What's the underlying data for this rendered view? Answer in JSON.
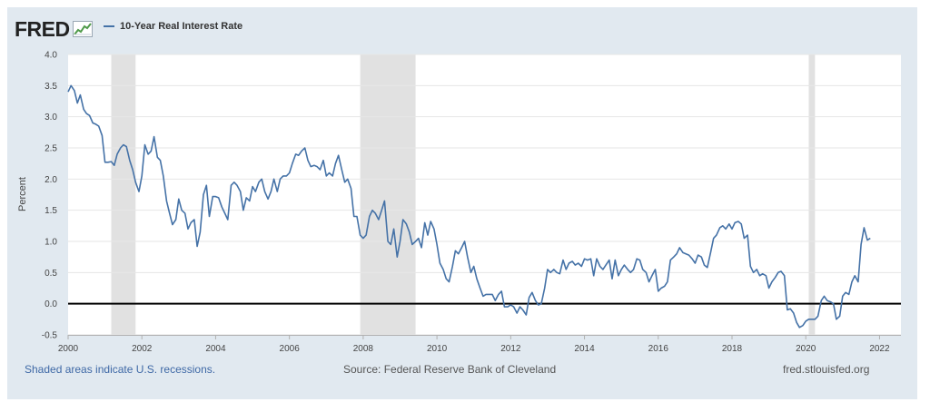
{
  "brand": {
    "name": "FRED"
  },
  "legend": {
    "label": "10-Year Real Interest Rate",
    "color": "#4572a7"
  },
  "footer": {
    "recession_note": "Shaded areas indicate U.S. recessions.",
    "source": "Source: Federal Reserve Bank of Cleveland",
    "site": "fred.stlouisfed.org"
  },
  "chart_data": {
    "type": "line",
    "title": "",
    "xlabel": "",
    "ylabel": "Percent",
    "xlim": [
      2000.0,
      2022.58
    ],
    "ylim": [
      -0.5,
      4.0
    ],
    "yticks": [
      -0.5,
      0.0,
      0.5,
      1.0,
      1.5,
      2.0,
      2.5,
      3.0,
      3.5,
      4.0
    ],
    "xticks": [
      2000,
      2002,
      2004,
      2006,
      2008,
      2010,
      2012,
      2014,
      2016,
      2018,
      2020,
      2022
    ],
    "grid": true,
    "zero_line": true,
    "recessions": [
      [
        2001.17,
        2001.83
      ],
      [
        2007.92,
        2009.42
      ],
      [
        2020.08,
        2020.25
      ]
    ],
    "series": [
      {
        "name": "10-Year Real Interest Rate",
        "points": [
          [
            2000.0,
            3.4
          ],
          [
            2000.08,
            3.5
          ],
          [
            2000.17,
            3.42
          ],
          [
            2000.25,
            3.22
          ],
          [
            2000.33,
            3.35
          ],
          [
            2000.42,
            3.12
          ],
          [
            2000.5,
            3.05
          ],
          [
            2000.58,
            3.02
          ],
          [
            2000.67,
            2.9
          ],
          [
            2000.75,
            2.88
          ],
          [
            2000.83,
            2.85
          ],
          [
            2000.92,
            2.7
          ],
          [
            2001.0,
            2.27
          ],
          [
            2001.08,
            2.27
          ],
          [
            2001.17,
            2.28
          ],
          [
            2001.25,
            2.22
          ],
          [
            2001.33,
            2.4
          ],
          [
            2001.42,
            2.5
          ],
          [
            2001.5,
            2.55
          ],
          [
            2001.58,
            2.52
          ],
          [
            2001.67,
            2.3
          ],
          [
            2001.75,
            2.15
          ],
          [
            2001.83,
            1.95
          ],
          [
            2001.92,
            1.8
          ],
          [
            2002.0,
            2.05
          ],
          [
            2002.08,
            2.55
          ],
          [
            2002.17,
            2.4
          ],
          [
            2002.25,
            2.45
          ],
          [
            2002.33,
            2.68
          ],
          [
            2002.42,
            2.35
          ],
          [
            2002.5,
            2.3
          ],
          [
            2002.58,
            2.05
          ],
          [
            2002.67,
            1.65
          ],
          [
            2002.75,
            1.45
          ],
          [
            2002.83,
            1.27
          ],
          [
            2002.92,
            1.35
          ],
          [
            2003.0,
            1.68
          ],
          [
            2003.08,
            1.5
          ],
          [
            2003.17,
            1.45
          ],
          [
            2003.25,
            1.2
          ],
          [
            2003.33,
            1.3
          ],
          [
            2003.42,
            1.35
          ],
          [
            2003.5,
            0.92
          ],
          [
            2003.58,
            1.15
          ],
          [
            2003.67,
            1.75
          ],
          [
            2003.75,
            1.9
          ],
          [
            2003.83,
            1.4
          ],
          [
            2003.92,
            1.72
          ],
          [
            2004.0,
            1.72
          ],
          [
            2004.08,
            1.7
          ],
          [
            2004.17,
            1.55
          ],
          [
            2004.25,
            1.45
          ],
          [
            2004.33,
            1.35
          ],
          [
            2004.42,
            1.9
          ],
          [
            2004.5,
            1.95
          ],
          [
            2004.58,
            1.9
          ],
          [
            2004.67,
            1.8
          ],
          [
            2004.75,
            1.5
          ],
          [
            2004.83,
            1.7
          ],
          [
            2004.92,
            1.65
          ],
          [
            2005.0,
            1.88
          ],
          [
            2005.08,
            1.8
          ],
          [
            2005.17,
            1.95
          ],
          [
            2005.25,
            2.0
          ],
          [
            2005.33,
            1.8
          ],
          [
            2005.42,
            1.68
          ],
          [
            2005.5,
            1.8
          ],
          [
            2005.58,
            2.0
          ],
          [
            2005.67,
            1.8
          ],
          [
            2005.75,
            2.0
          ],
          [
            2005.83,
            2.05
          ],
          [
            2005.92,
            2.05
          ],
          [
            2006.0,
            2.1
          ],
          [
            2006.08,
            2.25
          ],
          [
            2006.17,
            2.4
          ],
          [
            2006.25,
            2.38
          ],
          [
            2006.33,
            2.45
          ],
          [
            2006.42,
            2.5
          ],
          [
            2006.5,
            2.3
          ],
          [
            2006.58,
            2.2
          ],
          [
            2006.67,
            2.22
          ],
          [
            2006.75,
            2.2
          ],
          [
            2006.83,
            2.15
          ],
          [
            2006.92,
            2.3
          ],
          [
            2007.0,
            2.05
          ],
          [
            2007.08,
            2.1
          ],
          [
            2007.17,
            2.05
          ],
          [
            2007.25,
            2.25
          ],
          [
            2007.33,
            2.38
          ],
          [
            2007.42,
            2.15
          ],
          [
            2007.5,
            1.95
          ],
          [
            2007.58,
            2.0
          ],
          [
            2007.67,
            1.85
          ],
          [
            2007.75,
            1.4
          ],
          [
            2007.83,
            1.4
          ],
          [
            2007.92,
            1.1
          ],
          [
            2008.0,
            1.05
          ],
          [
            2008.08,
            1.1
          ],
          [
            2008.17,
            1.4
          ],
          [
            2008.25,
            1.5
          ],
          [
            2008.33,
            1.45
          ],
          [
            2008.42,
            1.35
          ],
          [
            2008.5,
            1.5
          ],
          [
            2008.58,
            1.65
          ],
          [
            2008.67,
            1.0
          ],
          [
            2008.75,
            0.95
          ],
          [
            2008.83,
            1.2
          ],
          [
            2008.92,
            0.75
          ],
          [
            2009.0,
            1.0
          ],
          [
            2009.08,
            1.35
          ],
          [
            2009.17,
            1.28
          ],
          [
            2009.25,
            1.15
          ],
          [
            2009.33,
            0.95
          ],
          [
            2009.42,
            1.0
          ],
          [
            2009.5,
            1.05
          ],
          [
            2009.58,
            0.9
          ],
          [
            2009.67,
            1.3
          ],
          [
            2009.75,
            1.1
          ],
          [
            2009.83,
            1.32
          ],
          [
            2009.92,
            1.2
          ],
          [
            2010.0,
            0.95
          ],
          [
            2010.08,
            0.65
          ],
          [
            2010.17,
            0.55
          ],
          [
            2010.25,
            0.4
          ],
          [
            2010.33,
            0.35
          ],
          [
            2010.42,
            0.6
          ],
          [
            2010.5,
            0.85
          ],
          [
            2010.58,
            0.8
          ],
          [
            2010.67,
            0.9
          ],
          [
            2010.75,
            1.0
          ],
          [
            2010.83,
            0.75
          ],
          [
            2010.92,
            0.5
          ],
          [
            2011.0,
            0.6
          ],
          [
            2011.08,
            0.4
          ],
          [
            2011.17,
            0.25
          ],
          [
            2011.25,
            0.12
          ],
          [
            2011.33,
            0.15
          ],
          [
            2011.42,
            0.15
          ],
          [
            2011.5,
            0.15
          ],
          [
            2011.58,
            0.05
          ],
          [
            2011.67,
            0.15
          ],
          [
            2011.75,
            0.2
          ],
          [
            2011.83,
            -0.05
          ],
          [
            2011.92,
            -0.05
          ],
          [
            2012.0,
            -0.02
          ],
          [
            2012.08,
            -0.05
          ],
          [
            2012.17,
            -0.15
          ],
          [
            2012.25,
            -0.05
          ],
          [
            2012.33,
            -0.1
          ],
          [
            2012.42,
            -0.18
          ],
          [
            2012.5,
            0.1
          ],
          [
            2012.58,
            0.18
          ],
          [
            2012.67,
            0.05
          ],
          [
            2012.75,
            -0.02
          ],
          [
            2012.83,
            0.0
          ],
          [
            2012.92,
            0.25
          ],
          [
            2013.0,
            0.55
          ],
          [
            2013.08,
            0.5
          ],
          [
            2013.17,
            0.55
          ],
          [
            2013.25,
            0.5
          ],
          [
            2013.33,
            0.48
          ],
          [
            2013.42,
            0.7
          ],
          [
            2013.5,
            0.55
          ],
          [
            2013.58,
            0.65
          ],
          [
            2013.67,
            0.68
          ],
          [
            2013.75,
            0.62
          ],
          [
            2013.83,
            0.65
          ],
          [
            2013.92,
            0.6
          ],
          [
            2014.0,
            0.72
          ],
          [
            2014.08,
            0.7
          ],
          [
            2014.17,
            0.72
          ],
          [
            2014.25,
            0.45
          ],
          [
            2014.33,
            0.72
          ],
          [
            2014.42,
            0.6
          ],
          [
            2014.5,
            0.55
          ],
          [
            2014.58,
            0.62
          ],
          [
            2014.67,
            0.7
          ],
          [
            2014.75,
            0.4
          ],
          [
            2014.83,
            0.7
          ],
          [
            2014.92,
            0.45
          ],
          [
            2015.0,
            0.55
          ],
          [
            2015.08,
            0.62
          ],
          [
            2015.17,
            0.55
          ],
          [
            2015.25,
            0.5
          ],
          [
            2015.33,
            0.55
          ],
          [
            2015.42,
            0.72
          ],
          [
            2015.5,
            0.7
          ],
          [
            2015.58,
            0.55
          ],
          [
            2015.67,
            0.5
          ],
          [
            2015.75,
            0.35
          ],
          [
            2015.83,
            0.45
          ],
          [
            2015.92,
            0.55
          ],
          [
            2016.0,
            0.2
          ],
          [
            2016.08,
            0.25
          ],
          [
            2016.17,
            0.28
          ],
          [
            2016.25,
            0.35
          ],
          [
            2016.33,
            0.7
          ],
          [
            2016.42,
            0.75
          ],
          [
            2016.5,
            0.8
          ],
          [
            2016.58,
            0.9
          ],
          [
            2016.67,
            0.82
          ],
          [
            2016.75,
            0.8
          ],
          [
            2016.83,
            0.78
          ],
          [
            2016.92,
            0.72
          ],
          [
            2017.0,
            0.65
          ],
          [
            2017.08,
            0.78
          ],
          [
            2017.17,
            0.75
          ],
          [
            2017.25,
            0.62
          ],
          [
            2017.33,
            0.58
          ],
          [
            2017.42,
            0.82
          ],
          [
            2017.5,
            1.05
          ],
          [
            2017.58,
            1.1
          ],
          [
            2017.67,
            1.22
          ],
          [
            2017.75,
            1.25
          ],
          [
            2017.83,
            1.2
          ],
          [
            2017.92,
            1.28
          ],
          [
            2018.0,
            1.2
          ],
          [
            2018.08,
            1.3
          ],
          [
            2018.17,
            1.32
          ],
          [
            2018.25,
            1.28
          ],
          [
            2018.33,
            1.05
          ],
          [
            2018.42,
            1.1
          ],
          [
            2018.5,
            0.6
          ],
          [
            2018.58,
            0.5
          ],
          [
            2018.67,
            0.55
          ],
          [
            2018.75,
            0.45
          ],
          [
            2018.83,
            0.48
          ],
          [
            2018.92,
            0.45
          ],
          [
            2019.0,
            0.25
          ],
          [
            2019.08,
            0.35
          ],
          [
            2019.17,
            0.42
          ],
          [
            2019.25,
            0.5
          ],
          [
            2019.33,
            0.52
          ],
          [
            2019.42,
            0.45
          ],
          [
            2019.5,
            -0.1
          ],
          [
            2019.58,
            -0.08
          ],
          [
            2019.67,
            -0.15
          ],
          [
            2019.75,
            -0.3
          ],
          [
            2019.83,
            -0.38
          ],
          [
            2019.92,
            -0.35
          ],
          [
            2020.0,
            -0.28
          ],
          [
            2020.08,
            -0.25
          ],
          [
            2020.17,
            -0.25
          ],
          [
            2020.25,
            -0.25
          ],
          [
            2020.33,
            -0.2
          ],
          [
            2020.42,
            0.05
          ],
          [
            2020.5,
            0.12
          ],
          [
            2020.58,
            0.05
          ],
          [
            2020.67,
            0.03
          ],
          [
            2020.75,
            0.0
          ],
          [
            2020.83,
            -0.25
          ],
          [
            2020.92,
            -0.2
          ],
          [
            2021.0,
            0.12
          ],
          [
            2021.08,
            0.18
          ],
          [
            2021.17,
            0.15
          ],
          [
            2021.25,
            0.35
          ],
          [
            2021.33,
            0.45
          ],
          [
            2021.42,
            0.35
          ],
          [
            2021.5,
            0.95
          ],
          [
            2021.58,
            1.22
          ],
          [
            2021.67,
            1.02
          ],
          [
            2021.75,
            1.05
          ]
        ]
      }
    ]
  }
}
